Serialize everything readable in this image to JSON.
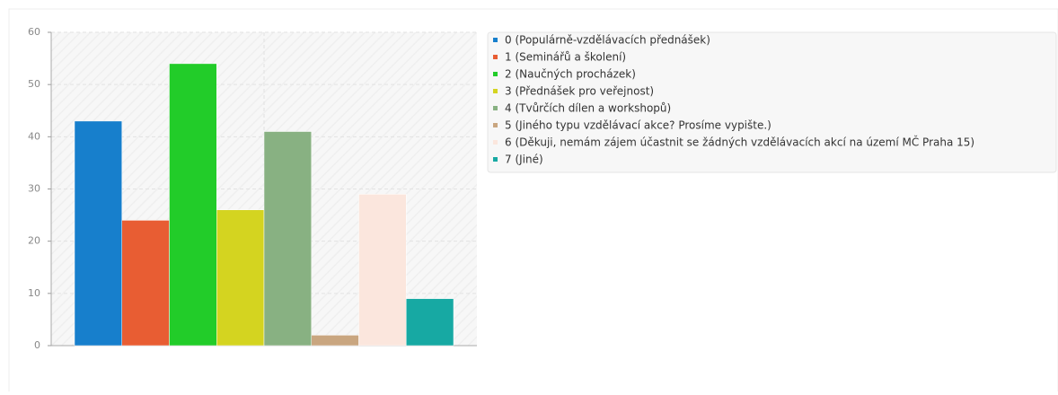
{
  "chart_data": {
    "type": "bar",
    "series": [
      {
        "name": "0 (Populárně-vzdělávacích přednášek)",
        "color": "#177fcc",
        "values": [
          43
        ]
      },
      {
        "name": "1 (Seminářů a školení)",
        "color": "#e85d33",
        "values": [
          24
        ]
      },
      {
        "name": "2 (Naučných procházek)",
        "color": "#22cc29",
        "values": [
          54
        ]
      },
      {
        "name": "3 (Přednášek pro veřejnost)",
        "color": "#d4d420",
        "values": [
          26
        ]
      },
      {
        "name": "4 (Tvůrčích dílen a workshopů)",
        "color": "#88b182",
        "values": [
          41
        ]
      },
      {
        "name": "5 (Jiného typu vzdělávací akce? Prosíme vypište.)",
        "color": "#c9a680",
        "values": [
          2
        ]
      },
      {
        "name": "6 (Děkuji, nemám zájem účastnit se žádných vzdělávacích akcí na území MČ Praha 15)",
        "color": "#fbe6dd",
        "values": [
          29
        ]
      },
      {
        "name": "7 (Jiné)",
        "color": "#17a9a3",
        "values": [
          9
        ]
      }
    ],
    "ylim": [
      0,
      60
    ],
    "yticks": [
      0,
      10,
      20,
      30,
      40,
      50,
      60
    ],
    "grid": true,
    "legend": "right"
  }
}
